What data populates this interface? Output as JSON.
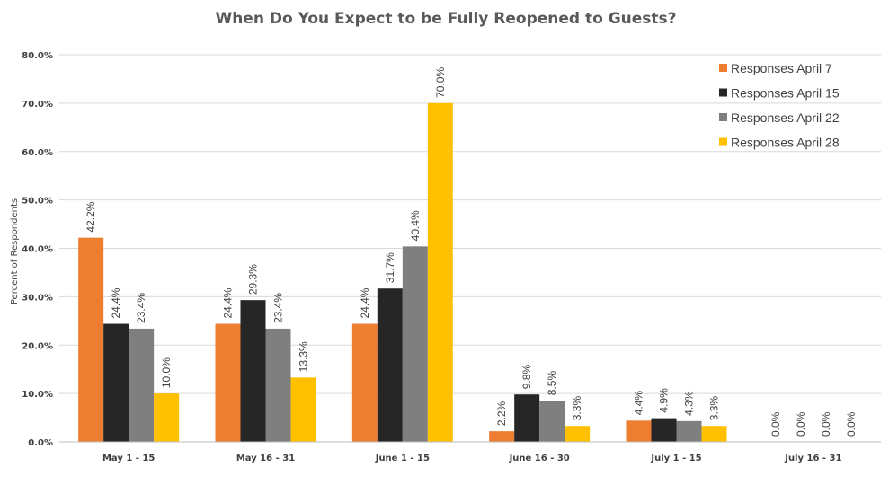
{
  "chart_data": {
    "type": "bar",
    "title": "When Do You Expect to be  Fully Reopened to Guests?",
    "xlabel": "",
    "ylabel": "Percent of Respondents",
    "ylim": [
      0,
      80
    ],
    "yticks": [
      "0.0%",
      "10.0%",
      "20.0%",
      "30.0%",
      "40.0%",
      "50.0%",
      "60.0%",
      "70.0%",
      "80.0%"
    ],
    "ytick_values": [
      0,
      10,
      20,
      30,
      40,
      50,
      60,
      70,
      80
    ],
    "categories": [
      "May 1 - 15",
      "May 16 - 31",
      "June 1 - 15",
      "June 16 - 30",
      "July 1 - 15",
      "July 16 - 31"
    ],
    "legend_position": "top-right",
    "grid": true,
    "series": [
      {
        "name": "Responses April 7",
        "color": "#ed7d31",
        "values": [
          42.2,
          24.4,
          24.4,
          2.2,
          4.4,
          0.0
        ],
        "labels": [
          "42.2%",
          "24.4%",
          "24.4%",
          "2.2%",
          "4.4%",
          "0.0%"
        ]
      },
      {
        "name": "Responses April 15",
        "color": "#262626",
        "values": [
          24.4,
          29.3,
          31.7,
          9.8,
          4.9,
          0.0
        ],
        "labels": [
          "24.4%",
          "29.3%",
          "31.7%",
          "9.8%",
          "4.9%",
          "0.0%"
        ]
      },
      {
        "name": "Responses April 22",
        "color": "#7f7f7f",
        "values": [
          23.4,
          23.4,
          40.4,
          8.5,
          4.3,
          0.0
        ],
        "labels": [
          "23.4%",
          "23.4%",
          "40.4%",
          "8.5%",
          "4.3%",
          "0.0%"
        ]
      },
      {
        "name": "Responses April 28",
        "color": "#ffc000",
        "values": [
          10.0,
          13.3,
          70.0,
          3.3,
          3.3,
          0.0
        ],
        "labels": [
          "10.0%",
          "13.3%",
          "70.0%",
          "3.3%",
          "3.3%",
          "0.0%"
        ]
      }
    ]
  }
}
